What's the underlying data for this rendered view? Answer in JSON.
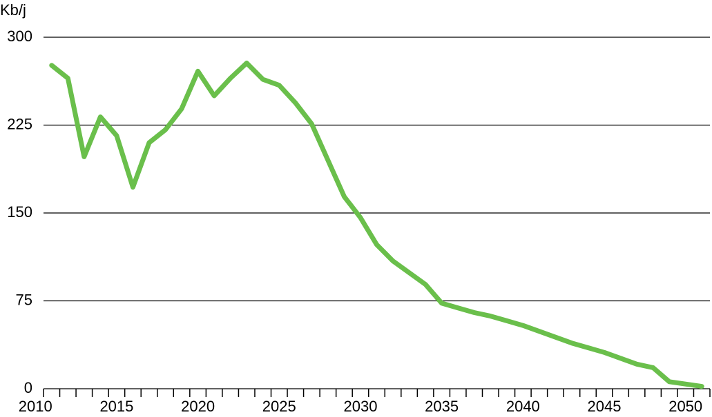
{
  "chart_data": {
    "type": "line",
    "y_label": "Kb/j",
    "x": [
      2011,
      2012,
      2013,
      2014,
      2015,
      2016,
      2017,
      2018,
      2019,
      2020,
      2021,
      2022,
      2023,
      2024,
      2025,
      2026,
      2027,
      2028,
      2029,
      2030,
      2031,
      2032,
      2033,
      2034,
      2035,
      2036,
      2037,
      2038,
      2039,
      2040,
      2041,
      2042,
      2043,
      2044,
      2045,
      2046,
      2047,
      2048,
      2049,
      2050,
      2051
    ],
    "series": [
      {
        "color": "#6abf4b",
        "values": [
          276,
          265,
          198,
          232,
          216,
          172,
          210,
          221,
          239,
          271,
          250,
          265,
          278,
          264,
          259,
          244,
          226,
          195,
          164,
          146,
          123,
          109,
          99,
          89,
          73,
          69,
          65,
          62,
          58,
          54,
          49,
          44,
          39,
          35,
          31,
          26,
          21,
          18,
          6,
          4,
          2
        ]
      }
    ],
    "xlim": [
      2010.5,
      2051.5
    ],
    "xticks": [
      2010,
      2015,
      2020,
      2025,
      2030,
      2035,
      2040,
      2045,
      2050
    ],
    "ylim": [
      0,
      300
    ],
    "yticks": [
      0,
      75,
      150,
      225,
      300
    ],
    "grid": true
  }
}
